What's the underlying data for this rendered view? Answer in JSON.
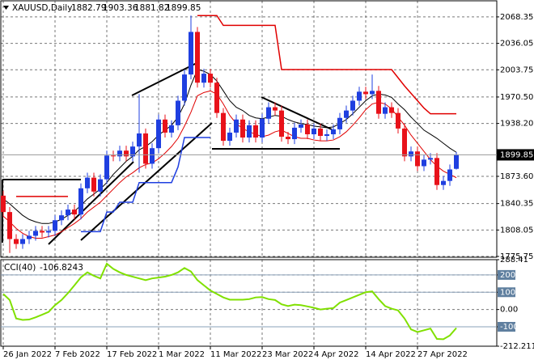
{
  "chart_data": [
    {
      "type": "candlestick",
      "title": "XAUUSD,Daily",
      "categories": [
        "26 Jan 2022",
        null,
        null,
        null,
        null,
        null,
        null,
        null,
        "7 Feb 2022",
        null,
        null,
        null,
        null,
        null,
        null,
        null,
        "17 Feb 2022",
        null,
        null,
        null,
        null,
        null,
        null,
        null,
        "1 Mar 2022",
        null,
        null,
        null,
        null,
        null,
        null,
        null,
        "11 Mar 2022",
        null,
        null,
        null,
        null,
        null,
        null,
        null,
        "23 Mar 2022",
        null,
        null,
        null,
        null,
        null,
        null,
        null,
        "4 Apr 2022",
        null,
        null,
        null,
        null,
        null,
        null,
        null,
        "14 Apr 2022",
        null,
        null,
        null,
        null,
        null,
        null,
        null,
        "27 Apr 2022",
        null,
        null,
        null,
        null,
        null,
        null
      ],
      "open": [
        1850,
        1830,
        1797,
        1791,
        1797,
        1801,
        1807,
        1805,
        1807,
        1820,
        1826,
        1833,
        1827,
        1859,
        1872,
        1855,
        1870,
        1899,
        1898,
        1905,
        1898,
        1910,
        1926,
        1889,
        1908,
        1943,
        1927,
        1936,
        1966,
        1998,
        2050,
        1988,
        1999,
        1988,
        1951,
        1917,
        1927,
        1943,
        1921,
        1936,
        1921,
        1944,
        1958,
        1954,
        1922,
        1919,
        1933,
        1937,
        1925,
        1932,
        1923,
        1925,
        1931,
        1945,
        1954,
        1966,
        1977,
        1974,
        1978,
        1950,
        1958,
        1951,
        1932,
        1898,
        1904,
        1886,
        1894,
        1896,
        1863,
        1868,
        1882.79
      ],
      "high": [
        1856,
        1836,
        1803,
        1803,
        1807,
        1813,
        1813,
        1813,
        1826,
        1832,
        1839,
        1839,
        1865,
        1878,
        1878,
        1876,
        1905,
        1905,
        1911,
        1911,
        1916,
        1974,
        1932,
        1914,
        1949,
        1949,
        1942,
        1972,
        2004,
        2070,
        2056,
        2005,
        2005,
        1994,
        1957,
        1933,
        1949,
        1949,
        1942,
        1942,
        1950,
        1964,
        1964,
        1960,
        1928,
        1939,
        1943,
        1943,
        1938,
        1938,
        1931,
        1937,
        1951,
        1960,
        1972,
        1983,
        1983,
        1998,
        1984,
        1964,
        1964,
        1957,
        1938,
        1910,
        1910,
        1900,
        1902,
        1902,
        1874,
        1888,
        1903.36
      ],
      "low": [
        1824,
        1780,
        1785,
        1785,
        1791,
        1795,
        1799,
        1799,
        1801,
        1814,
        1820,
        1821,
        1821,
        1853,
        1849,
        1849,
        1864,
        1892,
        1892,
        1892,
        1892,
        1878,
        1883,
        1883,
        1902,
        1921,
        1921,
        1930,
        1960,
        1992,
        1982,
        1982,
        1982,
        1945,
        1911,
        1911,
        1921,
        1915,
        1915,
        1915,
        1915,
        1938,
        1948,
        1916,
        1913,
        1913,
        1927,
        1919,
        1919,
        1917,
        1917,
        1919,
        1925,
        1939,
        1948,
        1960,
        1968,
        1968,
        1944,
        1944,
        1945,
        1926,
        1892,
        1892,
        1880,
        1880,
        1888,
        1857,
        1857,
        1862,
        1881.82
      ],
      "close": [
        1830,
        1797,
        1791,
        1797,
        1801,
        1807,
        1805,
        1807,
        1820,
        1826,
        1833,
        1827,
        1859,
        1872,
        1855,
        1870,
        1899,
        1898,
        1905,
        1898,
        1910,
        1926,
        1889,
        1908,
        1943,
        1927,
        1936,
        1966,
        1998,
        2050,
        1988,
        1999,
        1988,
        1951,
        1917,
        1927,
        1943,
        1921,
        1936,
        1921,
        1944,
        1958,
        1954,
        1922,
        1919,
        1933,
        1937,
        1925,
        1932,
        1923,
        1925,
        1931,
        1945,
        1954,
        1966,
        1977,
        1974,
        1978,
        1950,
        1958,
        1951,
        1932,
        1898,
        1904,
        1886,
        1894,
        1896,
        1863,
        1868,
        1882,
        1899.85
      ],
      "up_color": "#1f3fe0",
      "down_color": "#e8121a",
      "series": [
        {
          "color": "#000000",
          "values": [
            1846,
            1840,
            1833,
            1826,
            1821,
            1818,
            1816,
            1816,
            1818,
            1821,
            1826,
            1831,
            1838,
            1846,
            1852,
            1858,
            1866,
            1876,
            1884,
            1892,
            1898,
            1906,
            1910,
            1916,
            1924,
            1930,
            1936,
            1946,
            1962,
            1985,
            2004,
            2002,
            1998,
            1990,
            1978,
            1966,
            1958,
            1954,
            1948,
            1945,
            1944,
            1946,
            1948,
            1947,
            1943,
            1940,
            1938,
            1937,
            1935,
            1934,
            1933,
            1934,
            1938,
            1943,
            1950,
            1958,
            1966,
            1972,
            1974,
            1973,
            1970,
            1962,
            1955,
            1946,
            1938,
            1930,
            1925,
            1920,
            1914,
            1908,
            1903
          ]
        },
        {
          "color": "#e00000",
          "values": [
            1825,
            1818,
            1810,
            1804,
            1800,
            1798,
            1798,
            1800,
            1802,
            1806,
            1811,
            1816,
            1822,
            1830,
            1836,
            1842,
            1850,
            1858,
            1866,
            1873,
            1878,
            1884,
            1888,
            1890,
            1895,
            1902,
            1910,
            1920,
            1935,
            1952,
            1972,
            1976,
            1978,
            1974,
            1962,
            1948,
            1938,
            1932,
            1928,
            1925,
            1922,
            1924,
            1928,
            1930,
            1926,
            1922,
            1920,
            1920,
            1918,
            1917,
            1917,
            1918,
            1922,
            1928,
            1936,
            1945,
            1955,
            1962,
            1964,
            1962,
            1956,
            1946,
            1936,
            1924,
            1914,
            1904,
            1894,
            1886,
            1880,
            1876,
            1872
          ]
        },
        {
          "color": "#1f3fe0",
          "values": [
            null,
            null,
            null,
            null,
            null,
            null,
            null,
            null,
            null,
            null,
            null,
            null,
            1806,
            1806,
            1806,
            1806,
            1830,
            1830,
            1842,
            1842,
            1842,
            1866,
            1866,
            1866,
            1866,
            1866,
            1866,
            1885,
            1921,
            1921,
            1921,
            1921,
            1921,
            null,
            null,
            null,
            null,
            null,
            null,
            null,
            null,
            null,
            null,
            null,
            null,
            null,
            null,
            null,
            null,
            null,
            null,
            null,
            null,
            null,
            null,
            null,
            null,
            null,
            null,
            null,
            null,
            null,
            null,
            null,
            null,
            null,
            null,
            null,
            null,
            null,
            null
          ]
        },
        {
          "color": "#e00000",
          "values": [
            null,
            null,
            1849,
            1849,
            1849,
            1849,
            1849,
            1849,
            1849,
            1849,
            1849,
            null,
            null,
            null,
            null,
            null,
            null,
            null,
            null,
            null,
            null,
            null,
            null,
            null,
            null,
            null,
            null,
            null,
            null,
            null,
            2070,
            2070,
            2070,
            2070,
            2058,
            2058,
            2058,
            2058,
            2058,
            2058,
            2058,
            2058,
            2058,
            2004,
            2004,
            2004,
            2004,
            2004,
            2004,
            2004,
            2004,
            2004,
            2004,
            2004,
            2004,
            2004,
            2004,
            2004,
            2004,
            2004,
            2004,
            1994,
            1984,
            1975,
            1966,
            1957,
            1950,
            1950,
            1950,
            1950,
            1950
          ]
        }
      ],
      "ylim": [
        1774.8,
        2088.0
      ],
      "yticks": [
        2068.35,
        2036.05,
        2003.75,
        {
          "value": 1970.5,
          "label": "1970.50"
        },
        {
          "value": 1938.2,
          "label": "1938.20"
        },
        {
          "value": 1873.6,
          "label": "1873.60"
        },
        1840.35,
        1808.05,
        1775.75
      ],
      "grid": true
    },
    {
      "type": "line",
      "title": "CCI(40)",
      "series": [
        {
          "color": "#80e000",
          "values": [
            90,
            55,
            -52,
            -60,
            -58,
            -45,
            -30,
            -14,
            25,
            55,
            95,
            140,
            186,
            215,
            195,
            180,
            265,
            235,
            215,
            200,
            190,
            180,
            170,
            180,
            185,
            190,
            200,
            215,
            240,
            220,
            170,
            140,
            110,
            90,
            70,
            57,
            57,
            57,
            60,
            70,
            72,
            60,
            55,
            30,
            20,
            28,
            25,
            18,
            10,
            0,
            5,
            8,
            40,
            55,
            70,
            85,
            100,
            105,
            60,
            20,
            5,
            -5,
            -52,
            -115,
            -130,
            -120,
            -110,
            -170,
            -172,
            -150,
            -106.8243
          ]
        }
      ],
      "ylim": [
        -212.2113,
        288.41
      ],
      "yticks": [
        288.41,
        200,
        100,
        {
          "value": 0,
          "label": "0.00"
        },
        -100,
        -212.2113
      ],
      "levels": [
        200,
        100,
        -100
      ],
      "grid": true
    }
  ]
}
